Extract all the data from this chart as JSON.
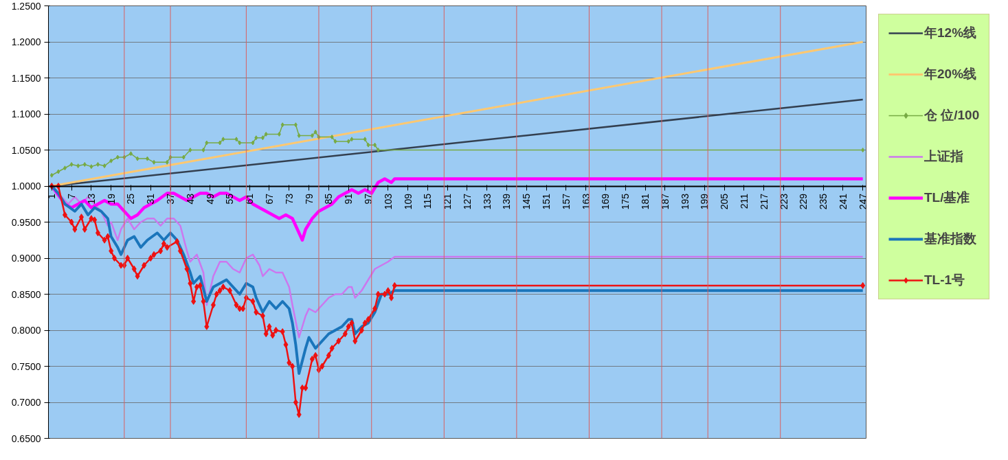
{
  "chart_data": {
    "type": "line",
    "xlim": [
      0,
      248
    ],
    "xticks": [
      1,
      7,
      13,
      19,
      25,
      31,
      37,
      43,
      49,
      55,
      61,
      67,
      73,
      79,
      85,
      91,
      97,
      103,
      109,
      115,
      121,
      127,
      133,
      139,
      145,
      151,
      157,
      163,
      169,
      175,
      181,
      187,
      193,
      199,
      205,
      211,
      217,
      223,
      229,
      235,
      241,
      247
    ],
    "ylim": [
      0.65,
      1.25
    ],
    "yticks": [
      {
        "value": 0.65,
        "label": "0.6500"
      },
      {
        "value": 0.7,
        "label": "0.7000"
      },
      {
        "value": 0.75,
        "label": "0.7500"
      },
      {
        "value": 0.8,
        "label": "0.8000"
      },
      {
        "value": 0.85,
        "label": "0.8500"
      },
      {
        "value": 0.9,
        "label": "0.9000"
      },
      {
        "value": 0.95,
        "label": "0.9500"
      },
      {
        "value": 1.0,
        "label": "1.0000"
      },
      {
        "value": 1.05,
        "label": "1.0500"
      },
      {
        "value": 1.1,
        "label": "1.1000"
      },
      {
        "value": 1.15,
        "label": "1.1500"
      },
      {
        "value": 1.2,
        "label": "1.2000"
      },
      {
        "value": 1.25,
        "label": "1.2500"
      }
    ],
    "grid": "y",
    "legend": "right",
    "series": [
      {
        "name": "年12%线",
        "color": "#333f4f",
        "x": [
          1,
          247
        ],
        "values": [
          1.0,
          1.12
        ]
      },
      {
        "name": "年20%线",
        "color": "#ffc870",
        "x": [
          1,
          247
        ],
        "values": [
          1.0,
          1.2
        ]
      },
      {
        "name": "仓 位/100",
        "color": "#77aa44",
        "marker": "diamond",
        "x": [
          1,
          3,
          5,
          7,
          9,
          11,
          13,
          15,
          17,
          19,
          21,
          23,
          25,
          27,
          30,
          32,
          36,
          37,
          41,
          43,
          47,
          48,
          52,
          53,
          57,
          58,
          62,
          63,
          65,
          66,
          70,
          71,
          75,
          76,
          80,
          81,
          82,
          86,
          87,
          91,
          92,
          96,
          97,
          99,
          100,
          247
        ],
        "values": [
          1.015,
          1.02,
          1.025,
          1.03,
          1.028,
          1.03,
          1.027,
          1.03,
          1.028,
          1.035,
          1.04,
          1.04,
          1.045,
          1.038,
          1.038,
          1.033,
          1.033,
          1.04,
          1.04,
          1.05,
          1.05,
          1.06,
          1.06,
          1.065,
          1.065,
          1.06,
          1.06,
          1.067,
          1.067,
          1.072,
          1.072,
          1.085,
          1.085,
          1.07,
          1.07,
          1.075,
          1.068,
          1.068,
          1.062,
          1.062,
          1.065,
          1.065,
          1.057,
          1.057,
          1.05,
          1.05
        ]
      },
      {
        "name": "上证指",
        "color": "#cc77ee",
        "x": [
          1,
          4,
          6,
          8,
          10,
          12,
          14,
          16,
          18,
          19,
          21,
          22,
          24,
          26,
          28,
          30,
          32,
          34,
          36,
          38,
          40,
          42,
          43,
          45,
          47,
          48,
          50,
          52,
          54,
          56,
          58,
          60,
          62,
          64,
          65,
          67,
          69,
          71,
          73,
          74,
          76,
          78,
          79,
          81,
          83,
          85,
          87,
          89,
          91,
          92,
          93,
          95,
          97,
          99,
          101,
          103,
          105,
          247
        ],
        "values": [
          1.0,
          0.985,
          0.975,
          0.985,
          0.975,
          0.985,
          0.975,
          0.965,
          0.945,
          0.95,
          0.925,
          0.94,
          0.955,
          0.94,
          0.95,
          0.955,
          0.955,
          0.945,
          0.955,
          0.955,
          0.945,
          0.91,
          0.895,
          0.905,
          0.88,
          0.835,
          0.875,
          0.895,
          0.895,
          0.885,
          0.88,
          0.9,
          0.905,
          0.89,
          0.875,
          0.885,
          0.88,
          0.88,
          0.86,
          0.835,
          0.79,
          0.82,
          0.83,
          0.825,
          0.835,
          0.845,
          0.85,
          0.85,
          0.86,
          0.86,
          0.845,
          0.855,
          0.87,
          0.885,
          0.89,
          0.895,
          0.902,
          0.902
        ]
      },
      {
        "name": "TL/基准",
        "color": "#ff00ff",
        "x": [
          1,
          5,
          7,
          9,
          11,
          13,
          15,
          17,
          19,
          21,
          23,
          25,
          27,
          29,
          31,
          33,
          36,
          38,
          40,
          42,
          44,
          46,
          48,
          50,
          52,
          54,
          56,
          58,
          60,
          62,
          64,
          66,
          68,
          70,
          72,
          74,
          75,
          77,
          78,
          80,
          82,
          84,
          86,
          88,
          90,
          92,
          94,
          96,
          98,
          100,
          102,
          104,
          105,
          247
        ],
        "values": [
          1.0,
          0.975,
          0.97,
          0.975,
          0.98,
          0.97,
          0.975,
          0.98,
          0.975,
          0.975,
          0.965,
          0.955,
          0.96,
          0.97,
          0.975,
          0.98,
          0.99,
          0.99,
          0.985,
          0.98,
          0.985,
          0.99,
          0.99,
          0.985,
          0.99,
          0.99,
          0.985,
          0.98,
          0.985,
          0.975,
          0.97,
          0.965,
          0.96,
          0.955,
          0.96,
          0.955,
          0.945,
          0.925,
          0.94,
          0.955,
          0.965,
          0.97,
          0.975,
          0.985,
          0.99,
          0.995,
          0.99,
          0.995,
          0.99,
          1.005,
          1.01,
          1.005,
          1.01,
          1.01
        ]
      },
      {
        "name": "基准指数",
        "color": "#1a75bb",
        "x": [
          1,
          3,
          5,
          8,
          10,
          12,
          14,
          16,
          18,
          19,
          21,
          22,
          24,
          26,
          28,
          30,
          33,
          35,
          37,
          39,
          41,
          43,
          44,
          46,
          48,
          50,
          52,
          54,
          56,
          58,
          60,
          62,
          63,
          65,
          67,
          69,
          71,
          73,
          74,
          75,
          76,
          78,
          79,
          81,
          83,
          85,
          87,
          89,
          91,
          92,
          93,
          95,
          97,
          99,
          101,
          103,
          105,
          247
        ],
        "values": [
          1.0,
          0.99,
          0.975,
          0.965,
          0.975,
          0.96,
          0.97,
          0.965,
          0.955,
          0.93,
          0.915,
          0.905,
          0.925,
          0.93,
          0.915,
          0.925,
          0.935,
          0.925,
          0.935,
          0.925,
          0.905,
          0.88,
          0.865,
          0.875,
          0.84,
          0.86,
          0.865,
          0.87,
          0.86,
          0.85,
          0.865,
          0.86,
          0.845,
          0.825,
          0.84,
          0.83,
          0.84,
          0.83,
          0.81,
          0.78,
          0.74,
          0.775,
          0.79,
          0.775,
          0.785,
          0.795,
          0.8,
          0.805,
          0.815,
          0.815,
          0.795,
          0.805,
          0.81,
          0.825,
          0.85,
          0.85,
          0.855,
          0.855
        ]
      },
      {
        "name": "TL-1号",
        "color": "#ee1111",
        "marker": "diamond",
        "x": [
          1,
          3,
          5,
          7,
          8,
          10,
          11,
          13,
          14,
          15,
          17,
          18,
          19,
          20,
          22,
          23,
          24,
          26,
          27,
          29,
          31,
          32,
          34,
          35,
          36,
          39,
          40,
          42,
          43,
          44,
          45,
          46,
          47,
          48,
          50,
          51,
          52,
          53,
          55,
          57,
          58,
          59,
          60,
          62,
          63,
          65,
          66,
          67,
          68,
          69,
          71,
          72,
          73,
          74,
          75,
          76,
          77,
          78,
          80,
          81,
          82,
          83,
          85,
          86,
          88,
          90,
          91,
          92,
          93,
          95,
          96,
          97,
          99,
          100,
          102,
          103,
          104,
          105,
          247
        ],
        "values": [
          1.0,
          1.0,
          0.96,
          0.95,
          0.94,
          0.957,
          0.94,
          0.955,
          0.953,
          0.935,
          0.925,
          0.93,
          0.91,
          0.9,
          0.89,
          0.89,
          0.9,
          0.885,
          0.875,
          0.89,
          0.9,
          0.905,
          0.91,
          0.92,
          0.915,
          0.923,
          0.91,
          0.885,
          0.865,
          0.84,
          0.86,
          0.862,
          0.84,
          0.805,
          0.835,
          0.85,
          0.855,
          0.86,
          0.855,
          0.835,
          0.83,
          0.83,
          0.845,
          0.84,
          0.825,
          0.82,
          0.795,
          0.805,
          0.793,
          0.8,
          0.798,
          0.78,
          0.755,
          0.75,
          0.7,
          0.683,
          0.72,
          0.72,
          0.76,
          0.765,
          0.745,
          0.75,
          0.765,
          0.775,
          0.785,
          0.795,
          0.805,
          0.81,
          0.785,
          0.8,
          0.81,
          0.815,
          0.83,
          0.85,
          0.85,
          0.855,
          0.845,
          0.862,
          0.862
        ]
      }
    ],
    "ref_lines": [
      {
        "axis": "x",
        "value": 23,
        "color": "#d96060"
      },
      {
        "axis": "x",
        "value": 37,
        "color": "#d96060"
      },
      {
        "axis": "x",
        "value": 60,
        "color": "#d96060"
      },
      {
        "axis": "x",
        "value": 82,
        "color": "#d96060"
      },
      {
        "axis": "x",
        "value": 98,
        "color": "#d96060"
      },
      {
        "axis": "x",
        "value": 120,
        "color": "#d96060"
      },
      {
        "axis": "x",
        "value": 142,
        "color": "#d96060"
      },
      {
        "axis": "x",
        "value": 164,
        "color": "#d96060"
      },
      {
        "axis": "x",
        "value": 186,
        "color": "#d96060"
      },
      {
        "axis": "x",
        "value": 200,
        "color": "#d96060"
      },
      {
        "axis": "x",
        "value": 222,
        "color": "#d96060"
      }
    ]
  }
}
